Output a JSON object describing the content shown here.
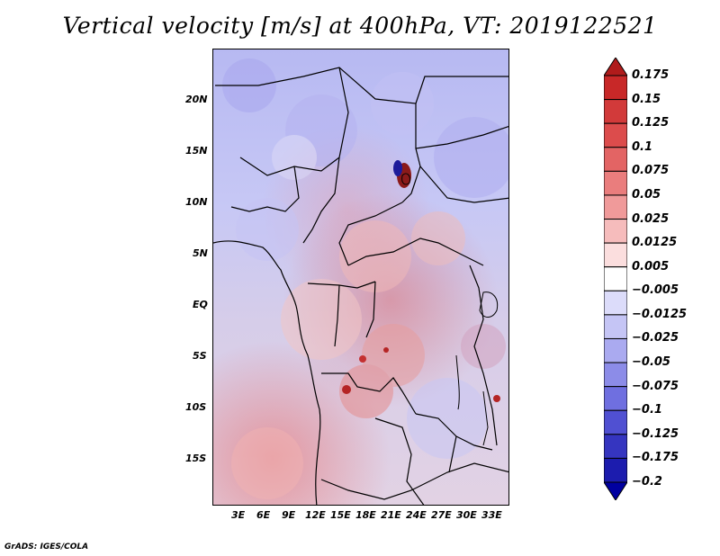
{
  "title": "Vertical velocity [m/s] at 400hPa, VT: 2019122521",
  "footer": "GrADS: IGES/COLA",
  "map": {
    "y_tick_labels": [
      "20N",
      "15N",
      "10N",
      "5N",
      "EQ",
      "5S",
      "10S",
      "15S"
    ],
    "x_tick_labels": [
      "3E",
      "6E",
      "9E",
      "12E",
      "15E",
      "18E",
      "21E",
      "24E",
      "27E",
      "30E",
      "33E"
    ]
  },
  "colorbar": {
    "labels": [
      "0.175",
      "0.15",
      "0.125",
      "0.1",
      "0.075",
      "0.05",
      "0.025",
      "0.0125",
      "0.005",
      "−0.005",
      "−0.0125",
      "−0.025",
      "−0.05",
      "−0.075",
      "−0.1",
      "−0.125",
      "−0.175",
      "−0.2"
    ],
    "colors": [
      "#b01b1b",
      "#c82828",
      "#d23a3a",
      "#dc4c4c",
      "#e36464",
      "#ea7d7d",
      "#f09a9a",
      "#f6bcbc",
      "#fbdede",
      "#ffffff",
      "#dcdcfa",
      "#c5c5f5",
      "#aaaaf0",
      "#8c8ce8",
      "#6f6fe0",
      "#5050d2",
      "#3535c0",
      "#1c1cae",
      "#0000a0"
    ]
  }
}
